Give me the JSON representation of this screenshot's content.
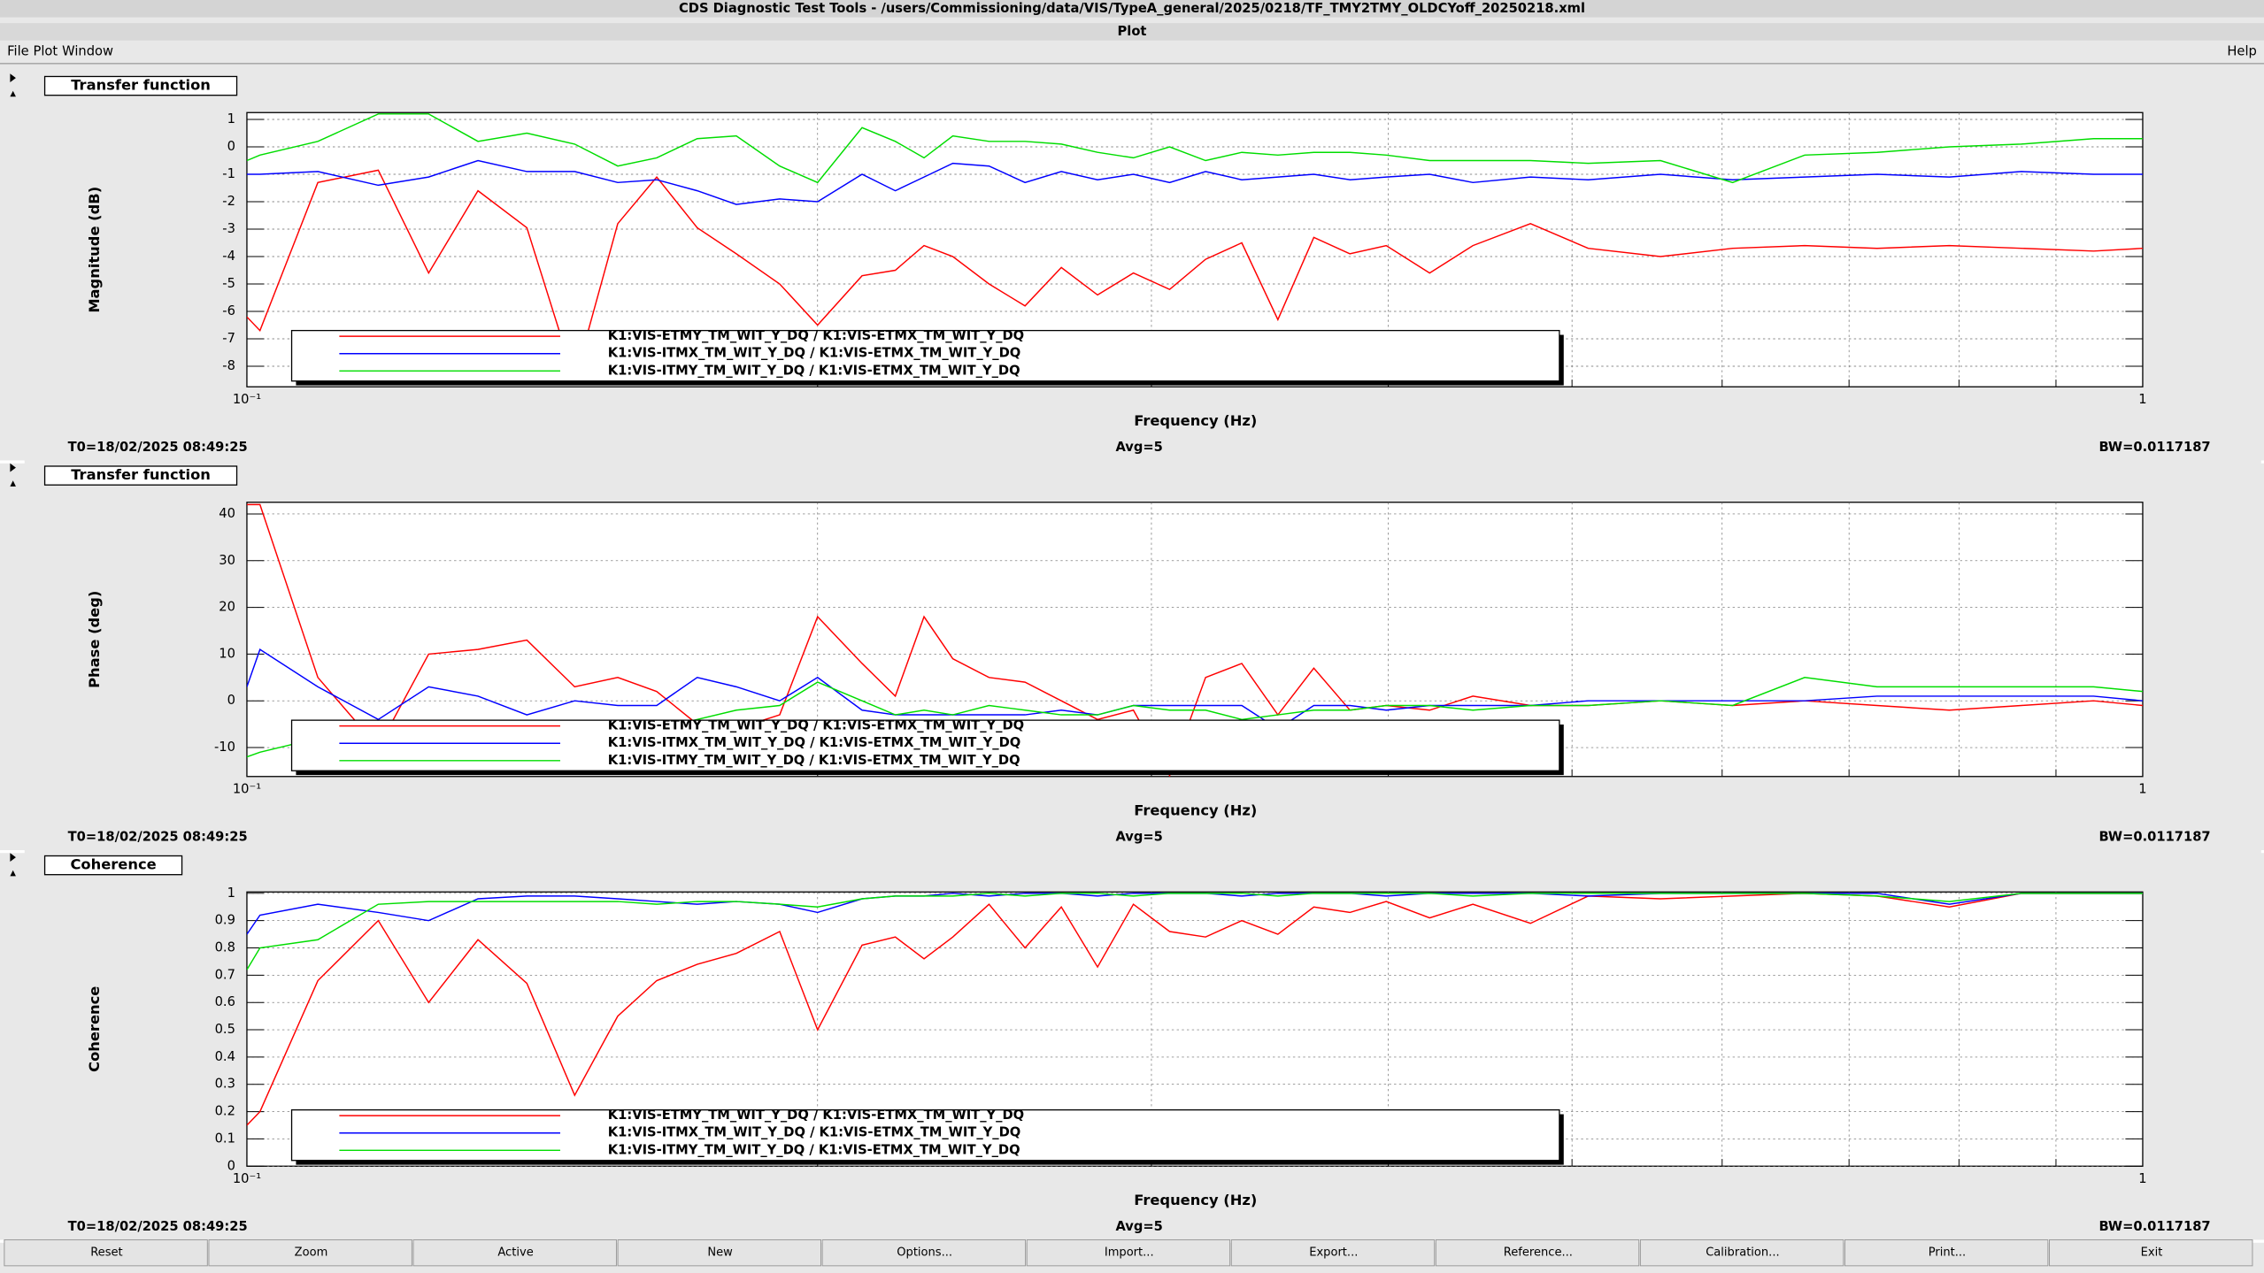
{
  "window": {
    "title": "CDS Diagnostic Test Tools - /users/Commissioning/data/VIS/TypeA_general/2025/0218/TF_TMY2TMY_OLDCYoff_20250218.xml",
    "subtitle": "Plot",
    "menu": [
      "File",
      "Plot",
      "Window"
    ],
    "help": "Help"
  },
  "buttons": [
    "Reset",
    "Zoom",
    "Active",
    "New",
    "Options...",
    "Import...",
    "Export...",
    "Reference...",
    "Calibration...",
    "Print...",
    "Exit"
  ],
  "chart_data": [
    {
      "type": "line",
      "title": "Transfer function",
      "ylabel": "Magnitude (dB)",
      "xlabel": "Frequency (Hz)",
      "t0": "T0=18/02/2025 08:49:25",
      "avg": "Avg=5",
      "bw": "BW=0.0117187",
      "xscale": "log",
      "grid": true,
      "xlim": [
        0.1,
        1
      ],
      "xticks": [
        {
          "value": 0.1,
          "label": "10⁻¹"
        },
        1
      ],
      "xminor": [
        0.2,
        0.3,
        0.4,
        0.5,
        0.6,
        0.7,
        0.8,
        0.9
      ],
      "ylim": [
        -8.75,
        1.25
      ],
      "yticks": [
        1,
        0,
        -1,
        -2,
        -3,
        -4,
        -5,
        -6,
        -7,
        -8
      ],
      "x": [
        0.1,
        0.1016,
        0.109,
        0.1173,
        0.1247,
        0.1324,
        0.1405,
        0.1489,
        0.1569,
        0.1645,
        0.1728,
        0.1812,
        0.191,
        0.2,
        0.2111,
        0.2198,
        0.2276,
        0.2357,
        0.2463,
        0.2573,
        0.2689,
        0.281,
        0.2935,
        0.3067,
        0.3204,
        0.3348,
        0.3498,
        0.3654,
        0.3818,
        0.399,
        0.4206,
        0.4433,
        0.4754,
        0.5099,
        0.5567,
        0.6077,
        0.6633,
        0.7242,
        0.7907,
        0.863,
        0.9421,
        1.0
      ],
      "series": [
        {
          "name": "K1:VIS-ETMY_TM_WIT_Y_DQ / K1:VIS-ETMX_TM_WIT_Y_DQ",
          "color": "#ff0000",
          "values": [
            -6.2,
            -6.7,
            -1.3,
            -0.85,
            -4.6,
            -1.6,
            -2.95,
            -8.5,
            -2.8,
            -1.1,
            -2.95,
            -3.9,
            -5.0,
            -6.5,
            -4.7,
            -4.5,
            -3.6,
            -4.0,
            -5.0,
            -5.8,
            -4.4,
            -5.4,
            -4.6,
            -5.2,
            -4.1,
            -3.5,
            -6.3,
            -3.3,
            -3.9,
            -3.6,
            -4.6,
            -3.6,
            -2.8,
            -3.7,
            -4.0,
            -3.7,
            -3.6,
            -3.7,
            -3.6,
            -3.7,
            -3.8,
            -3.7
          ]
        },
        {
          "name": "K1:VIS-ITMX_TM_WIT_Y_DQ / K1:VIS-ETMX_TM_WIT_Y_DQ",
          "color": "#0000ff",
          "values": [
            -1.0,
            -1.0,
            -0.9,
            -1.4,
            -1.1,
            -0.5,
            -0.9,
            -0.9,
            -1.3,
            -1.2,
            -1.6,
            -2.1,
            -1.9,
            -2.0,
            -1.0,
            -1.6,
            -1.1,
            -0.6,
            -0.7,
            -1.3,
            -0.9,
            -1.2,
            -1.0,
            -1.3,
            -0.9,
            -1.2,
            -1.1,
            -1.0,
            -1.2,
            -1.1,
            -1.0,
            -1.3,
            -1.1,
            -1.2,
            -1.0,
            -1.2,
            -1.1,
            -1.0,
            -1.1,
            -0.9,
            -1.0,
            -1.0
          ]
        },
        {
          "name": "K1:VIS-ITMY_TM_WIT_Y_DQ / K1:VIS-ETMX_TM_WIT_Y_DQ",
          "color": "#00dd00",
          "values": [
            -0.5,
            -0.3,
            0.2,
            1.2,
            1.2,
            0.2,
            0.5,
            0.1,
            -0.7,
            -0.4,
            0.3,
            0.4,
            -0.7,
            -1.3,
            0.7,
            0.2,
            -0.4,
            0.4,
            0.2,
            0.2,
            0.1,
            -0.2,
            -0.4,
            0,
            -0.5,
            -0.2,
            -0.3,
            -0.2,
            -0.2,
            -0.3,
            -0.5,
            -0.5,
            -0.5,
            -0.6,
            -0.5,
            -1.3,
            -0.3,
            -0.2,
            0,
            0.1,
            0.3,
            0.3
          ]
        }
      ]
    },
    {
      "type": "line",
      "title": "Transfer function",
      "ylabel": "Phase (deg)",
      "xlabel": "Frequency (Hz)",
      "t0": "T0=18/02/2025 08:49:25",
      "avg": "Avg=5",
      "bw": "BW=0.0117187",
      "xscale": "log",
      "grid": true,
      "xlim": [
        0.1,
        1
      ],
      "xticks": [
        {
          "value": 0.1,
          "label": "10⁻¹"
        },
        1
      ],
      "xminor": [
        0.2,
        0.3,
        0.4,
        0.5,
        0.6,
        0.7,
        0.8,
        0.9
      ],
      "ylim": [
        -16.2,
        42.5
      ],
      "yticks": [
        40,
        30,
        20,
        10,
        0,
        -10
      ],
      "x": [
        0.1,
        0.1016,
        0.109,
        0.1173,
        0.1247,
        0.1324,
        0.1405,
        0.1489,
        0.1569,
        0.1645,
        0.1728,
        0.1812,
        0.191,
        0.2,
        0.2111,
        0.2198,
        0.2276,
        0.2357,
        0.2463,
        0.2573,
        0.2689,
        0.281,
        0.2935,
        0.3067,
        0.3204,
        0.3348,
        0.3498,
        0.3654,
        0.3818,
        0.399,
        0.4206,
        0.4433,
        0.4754,
        0.5099,
        0.5567,
        0.6077,
        0.6633,
        0.7242,
        0.7907,
        0.863,
        0.9421,
        1.0
      ],
      "series": [
        {
          "name": "K1:VIS-ETMY_TM_WIT_Y_DQ / K1:VIS-ETMX_TM_WIT_Y_DQ",
          "color": "#ff0000",
          "values": [
            42,
            42,
            5,
            -10,
            10,
            11,
            13,
            3,
            5,
            2,
            -5,
            -6,
            -3,
            18,
            8,
            1,
            18,
            9,
            5,
            4,
            0,
            -4,
            -2,
            -16,
            5,
            8,
            -3,
            7,
            -2,
            -1,
            -2,
            1,
            -1,
            -1,
            0,
            -1,
            0,
            -1,
            -2,
            -1,
            0,
            -1
          ]
        },
        {
          "name": "K1:VIS-ITMX_TM_WIT_Y_DQ / K1:VIS-ETMX_TM_WIT_Y_DQ",
          "color": "#0000ff",
          "values": [
            3,
            11,
            3,
            -4,
            3,
            1,
            -3,
            0,
            -1,
            -1,
            5,
            3,
            0,
            5,
            -2,
            -3,
            -3,
            -3,
            -3,
            -3,
            -2,
            -3,
            -1,
            -1,
            -1,
            -1,
            -6,
            -1,
            -1,
            -2,
            -1,
            -1,
            -1,
            0,
            0,
            0,
            0,
            1,
            1,
            1,
            1,
            0
          ]
        },
        {
          "name": "K1:VIS-ITMY_TM_WIT_Y_DQ / K1:VIS-ETMX_TM_WIT_Y_DQ",
          "color": "#00dd00",
          "values": [
            -12,
            -11,
            -8,
            -10,
            -8,
            -7,
            -7,
            -8,
            -7,
            -6,
            -4,
            -2,
            -1,
            4,
            0,
            -3,
            -2,
            -3,
            -1,
            -2,
            -3,
            -3,
            -1,
            -2,
            -2,
            -4,
            -3,
            -2,
            -2,
            -1,
            -1,
            -2,
            -1,
            -1,
            0,
            -1,
            5,
            3,
            3,
            3,
            3,
            2
          ]
        }
      ]
    },
    {
      "type": "line",
      "title": "Coherence",
      "ylabel": "Coherence",
      "xlabel": "Frequency (Hz)",
      "t0": "T0=18/02/2025 08:49:25",
      "avg": "Avg=5",
      "bw": "BW=0.0117187",
      "xscale": "log",
      "grid": true,
      "xlim": [
        0.1,
        1
      ],
      "xticks": [
        {
          "value": 0.1,
          "label": "10⁻¹"
        },
        1
      ],
      "xminor": [
        0.2,
        0.3,
        0.4,
        0.5,
        0.6,
        0.7,
        0.8,
        0.9
      ],
      "ylim": [
        0,
        1.005
      ],
      "yticks": [
        1,
        0.9,
        0.8,
        0.7,
        0.6,
        0.5,
        0.4,
        0.3,
        0.2,
        0.1,
        0
      ],
      "x": [
        0.1,
        0.1016,
        0.109,
        0.1173,
        0.1247,
        0.1324,
        0.1405,
        0.1489,
        0.1569,
        0.1645,
        0.1728,
        0.1812,
        0.191,
        0.2,
        0.2111,
        0.2198,
        0.2276,
        0.2357,
        0.2463,
        0.2573,
        0.2689,
        0.281,
        0.2935,
        0.3067,
        0.3204,
        0.3348,
        0.3498,
        0.3654,
        0.3818,
        0.399,
        0.4206,
        0.4433,
        0.4754,
        0.5099,
        0.5567,
        0.6077,
        0.6633,
        0.7242,
        0.7907,
        0.863,
        0.9421,
        1.0
      ],
      "series": [
        {
          "name": "K1:VIS-ETMY_TM_WIT_Y_DQ / K1:VIS-ETMX_TM_WIT_Y_DQ",
          "color": "#ff0000",
          "values": [
            0.15,
            0.2,
            0.68,
            0.9,
            0.6,
            0.83,
            0.67,
            0.26,
            0.55,
            0.68,
            0.74,
            0.78,
            0.86,
            0.5,
            0.81,
            0.84,
            0.76,
            0.84,
            0.96,
            0.8,
            0.95,
            0.73,
            0.96,
            0.86,
            0.84,
            0.9,
            0.85,
            0.95,
            0.93,
            0.97,
            0.91,
            0.96,
            0.89,
            0.99,
            0.98,
            0.99,
            1.0,
            0.99,
            0.95,
            1.0,
            1.0,
            1.0
          ]
        },
        {
          "name": "K1:VIS-ITMX_TM_WIT_Y_DQ / K1:VIS-ETMX_TM_WIT_Y_DQ",
          "color": "#0000ff",
          "values": [
            0.85,
            0.92,
            0.96,
            0.93,
            0.9,
            0.98,
            0.99,
            0.99,
            0.98,
            0.97,
            0.96,
            0.97,
            0.96,
            0.93,
            0.98,
            0.99,
            0.99,
            1.0,
            0.99,
            1.0,
            1.0,
            0.99,
            1.0,
            1.0,
            1.0,
            0.99,
            1.0,
            1.0,
            1.0,
            0.99,
            1.0,
            1.0,
            1.0,
            0.99,
            1.0,
            1.0,
            1.0,
            1.0,
            0.96,
            1.0,
            1.0,
            1.0
          ]
        },
        {
          "name": "K1:VIS-ITMY_TM_WIT_Y_DQ / K1:VIS-ETMX_TM_WIT_Y_DQ",
          "color": "#00dd00",
          "values": [
            0.72,
            0.8,
            0.83,
            0.96,
            0.97,
            0.97,
            0.97,
            0.97,
            0.97,
            0.96,
            0.97,
            0.97,
            0.96,
            0.95,
            0.98,
            0.99,
            0.99,
            0.99,
            1.0,
            0.99,
            1.0,
            1.0,
            0.99,
            1.0,
            1.0,
            1.0,
            0.99,
            1.0,
            1.0,
            1.0,
            1.0,
            0.99,
            1.0,
            1.0,
            1.0,
            1.0,
            1.0,
            0.99,
            0.97,
            1.0,
            1.0,
            1.0
          ]
        }
      ]
    }
  ]
}
